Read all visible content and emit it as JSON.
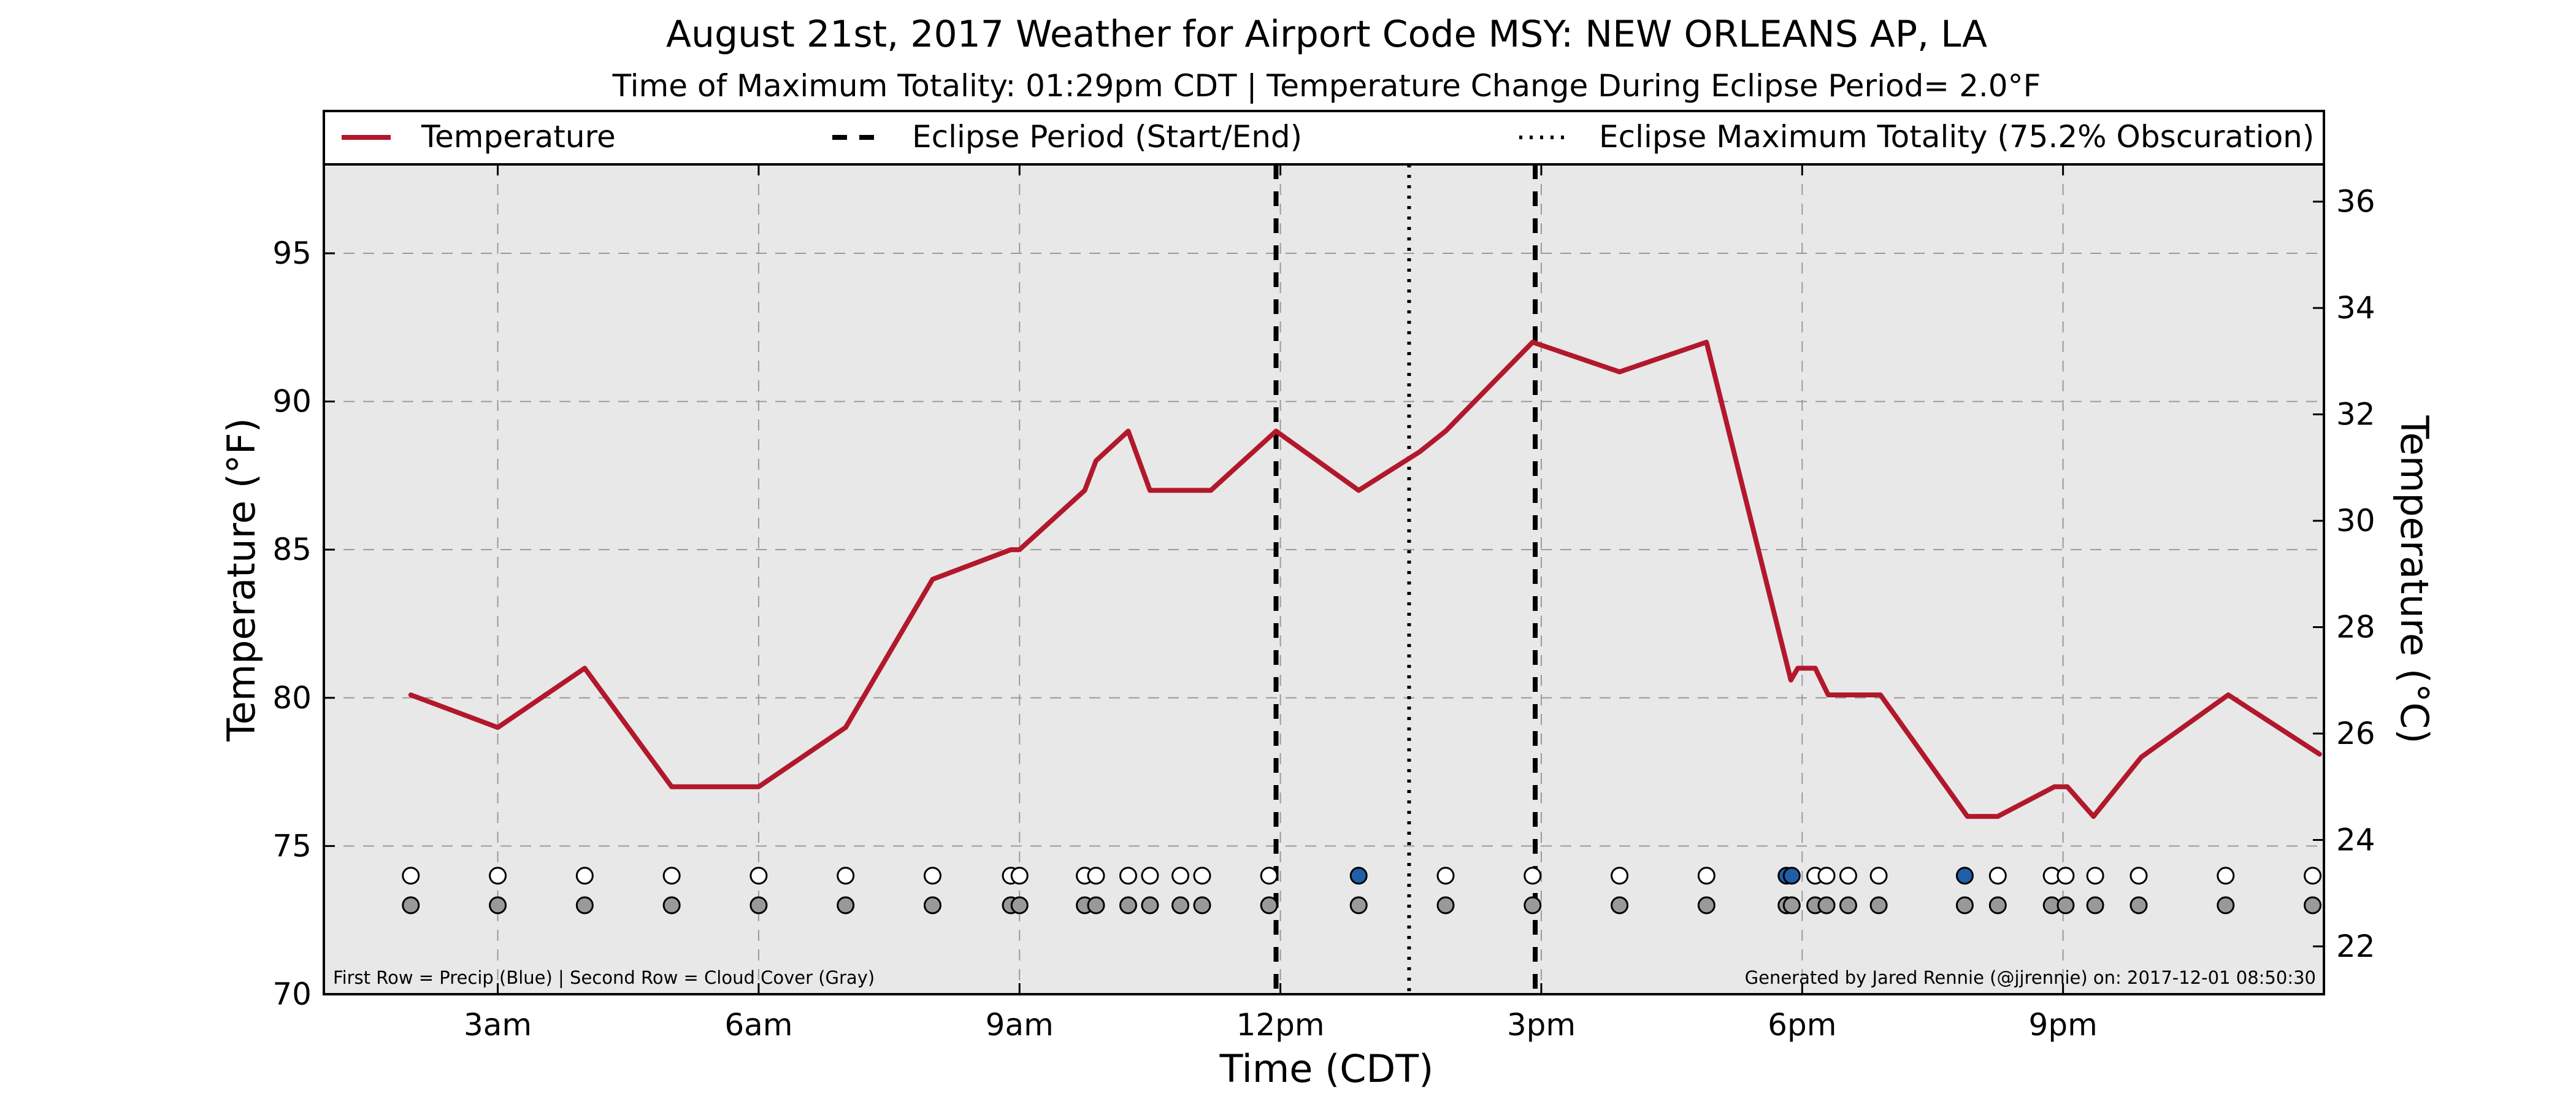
{
  "chart_data": {
    "type": "line",
    "title": "August 21st, 2017 Weather for Airport Code MSY: NEW ORLEANS AP, LA",
    "subtitle": "Time of Maximum Totality: 01:29pm CDT | Temperature Change During Eclipse Period= 2.0°F",
    "xlabel": "Time (CDT)",
    "ylabel": "Temperature (°F)",
    "ylabel_right": "Temperature (°C)",
    "xlim": [
      1,
      24
    ],
    "ylim": [
      70,
      98
    ],
    "ylim_right": [
      21.1,
      36.7
    ],
    "x_ticks": [
      {
        "value": 3,
        "label": "3am"
      },
      {
        "value": 6,
        "label": "6am"
      },
      {
        "value": 9,
        "label": "9am"
      },
      {
        "value": 12,
        "label": "12pm"
      },
      {
        "value": 15,
        "label": "3pm"
      },
      {
        "value": 18,
        "label": "6pm"
      },
      {
        "value": 21,
        "label": "9pm"
      }
    ],
    "y_ticks": [
      "70",
      "75",
      "80",
      "85",
      "90",
      "95"
    ],
    "y_ticks_right": [
      "22",
      "24",
      "26",
      "28",
      "30",
      "32",
      "34",
      "36"
    ],
    "grid": true,
    "legend_position": "top",
    "legend": [
      {
        "label": "Temperature",
        "style": "solid",
        "color": "#b2182b"
      },
      {
        "label": "Eclipse Period (Start/End)",
        "style": "dashed",
        "color": "#000000"
      },
      {
        "label": "Eclipse Maximum Totality (75.2% Obscuration)",
        "style": "dotted",
        "color": "#000000"
      }
    ],
    "series": [
      {
        "name": "Temperature",
        "color": "#b2182b",
        "x": [
          2,
          3,
          4,
          5,
          6,
          7,
          8,
          8.9,
          9,
          9.75,
          9.88,
          10.25,
          10.5,
          11.2,
          11.95,
          12.9,
          13.6,
          13.9,
          14.9,
          15.9,
          16.9,
          17.87,
          17.95,
          18.15,
          18.3,
          18.55,
          18.9,
          19.9,
          20.25,
          20.9,
          21.05,
          21.35,
          21.9,
          22.9,
          23.95
        ],
        "values": [
          80.1,
          79,
          81,
          77,
          77,
          79,
          84,
          85,
          85,
          87,
          88,
          89,
          87,
          87,
          89,
          87,
          88.3,
          89,
          92,
          91,
          92,
          80.6,
          81,
          81,
          80.1,
          80.1,
          80.1,
          76,
          76,
          77,
          77,
          76,
          78,
          80.1,
          78.1
        ]
      }
    ],
    "eclipse_start_x": 11.95,
    "eclipse_end_x": 14.93,
    "eclipse_max_x": 13.48,
    "obs_times": [
      2,
      3,
      4,
      5,
      6,
      7,
      8,
      8.9,
      9,
      9.75,
      9.88,
      10.25,
      10.5,
      10.85,
      11.1,
      11.87,
      12.9,
      13.9,
      14.9,
      15.9,
      16.9,
      17.82,
      17.88,
      18.15,
      18.28,
      18.53,
      18.88,
      19.87,
      20.25,
      20.87,
      21.03,
      21.37,
      21.87,
      22.87,
      23.87
    ],
    "precip_at": [
      12.9,
      17.82,
      17.88,
      19.87
    ],
    "precip_color": "#1f5fa8",
    "cloud_color": "#999999",
    "note_left": "First Row = Precip (Blue) | Second Row = Cloud Cover (Gray)",
    "note_right": "Generated by Jared Rennie (@jjrennie) on: 2017-12-01 08:50:30",
    "plot_background": "#e8e8e8"
  }
}
